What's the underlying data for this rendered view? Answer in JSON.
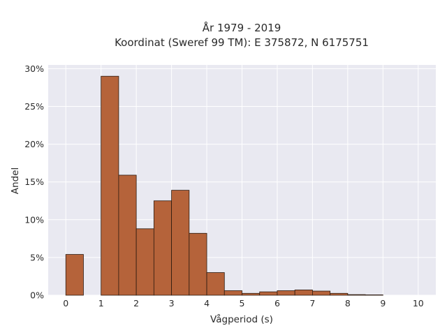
{
  "chart_data": {
    "type": "bar",
    "title_line1": "År 1979 - 2019",
    "title_line2": "Koordinat (Sweref 99 TM): E 375872, N 6175751",
    "xlabel": "Vågperiod (s)",
    "ylabel": "Andel",
    "xlim": [
      -0.5,
      10.5
    ],
    "ylim": [
      0,
      30.5
    ],
    "x_ticks": [
      0,
      1,
      2,
      3,
      4,
      5,
      6,
      7,
      8,
      9,
      10
    ],
    "y_ticks": [
      0,
      5,
      10,
      15,
      20,
      25,
      30
    ],
    "y_tick_labels": [
      "0%",
      "5%",
      "10%",
      "15%",
      "20%",
      "25%",
      "30%"
    ],
    "bin_width": 0.5,
    "bins": [
      {
        "start": 0.0,
        "value": 5.4
      },
      {
        "start": 1.0,
        "value": 29.0
      },
      {
        "start": 1.5,
        "value": 15.9
      },
      {
        "start": 2.0,
        "value": 8.8
      },
      {
        "start": 2.5,
        "value": 12.5
      },
      {
        "start": 3.0,
        "value": 13.9
      },
      {
        "start": 3.5,
        "value": 8.2
      },
      {
        "start": 4.0,
        "value": 3.0
      },
      {
        "start": 4.5,
        "value": 0.6
      },
      {
        "start": 5.0,
        "value": 0.25
      },
      {
        "start": 5.5,
        "value": 0.45
      },
      {
        "start": 6.0,
        "value": 0.6
      },
      {
        "start": 6.5,
        "value": 0.7
      },
      {
        "start": 7.0,
        "value": 0.55
      },
      {
        "start": 7.5,
        "value": 0.25
      },
      {
        "start": 8.0,
        "value": 0.08
      },
      {
        "start": 8.5,
        "value": 0.05
      }
    ],
    "grid": true,
    "legend": "none",
    "colors": {
      "bar_fill": "#b5633a",
      "bar_edge": "#2b1a10",
      "plot_bg": "#e9e9f1",
      "grid": "#ffffff"
    }
  }
}
